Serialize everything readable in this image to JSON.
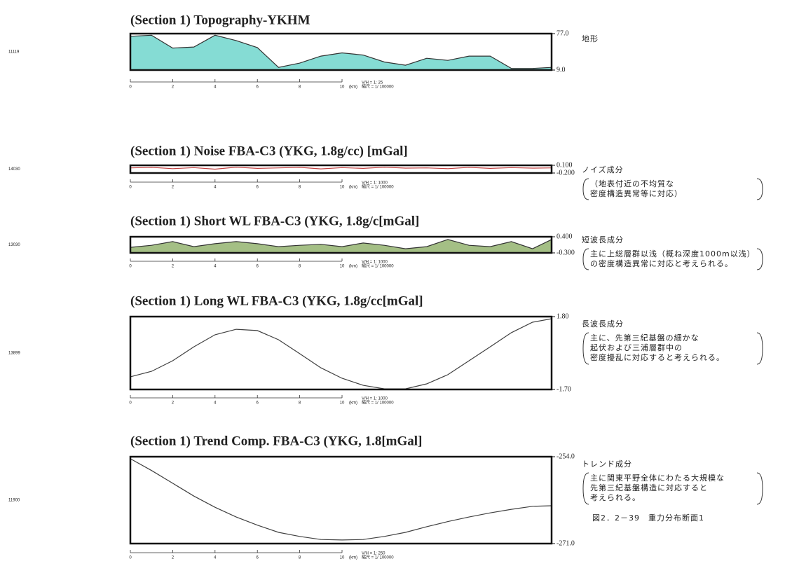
{
  "caption": "図2．2－39　重力分布断面1",
  "chart_data": [
    {
      "type": "line",
      "title": "(Section 1) Topography-YKHM",
      "side_label": "11119",
      "xlabel": "(km)",
      "scale_note": [
        "V/H = 1:   25",
        "縮尺 = 1/ 100000"
      ],
      "annotations": [
        "地形"
      ],
      "x": [
        0,
        1,
        2,
        3,
        4,
        5,
        6,
        7,
        8,
        9,
        10,
        11,
        12,
        13,
        14,
        15,
        16,
        17,
        18,
        19,
        19.9
      ],
      "values": [
        72,
        74,
        50,
        52,
        74,
        64,
        51,
        14,
        22,
        35,
        41,
        37,
        24,
        18,
        31,
        27,
        35,
        35,
        12,
        12,
        14
      ],
      "color": "#20c0b0",
      "fill": true,
      "xlim": [
        0,
        19.9
      ],
      "xticks": [
        0,
        2,
        4,
        6,
        8,
        10
      ],
      "ylim": [
        9,
        77
      ],
      "yticks": [
        {
          "value": 77,
          "label": "77.0"
        },
        {
          "value": 9,
          "label": "9.0"
        }
      ]
    },
    {
      "type": "line",
      "title": "(Section 1) Noise FBA-C3 (YKG, 1.8g/cc) [mGal]",
      "side_label": "14030",
      "xlabel": "(km)",
      "scale_note": [
        "V/H = 1:    1000",
        "縮尺 = 1/ 100000"
      ],
      "annotations": [
        "ノイズ成分",
        "（地表付近の不均質な",
        "密度構造異常等に対応）"
      ],
      "x": [
        0,
        1,
        2,
        3,
        4,
        5,
        6,
        7,
        8,
        9,
        10,
        11,
        12,
        13,
        14,
        15,
        16,
        17,
        18,
        19,
        19.9
      ],
      "values": [
        0,
        0.02,
        -0.03,
        0.01,
        -0.05,
        0.03,
        -0.02,
        0,
        0.02,
        -0.04,
        0.01,
        -0.02,
        0.03,
        -0.01,
        0,
        -0.03,
        0.02,
        -0.02,
        0.01,
        -0.01,
        0
      ],
      "color": "#c04040",
      "fill": false,
      "xlim": [
        0,
        19.9
      ],
      "xticks": [
        0,
        2,
        4,
        6,
        8,
        10
      ],
      "ylim": [
        -0.2,
        0.1
      ],
      "yticks": [
        {
          "value": 0.1,
          "label": "0.100"
        },
        {
          "value": -0.2,
          "label": "-0.200"
        }
      ]
    },
    {
      "type": "line",
      "title": "(Section 1) Short WL FBA-C3 (YKG, 1.8g/c[mGal]",
      "side_label": "13030",
      "xlabel": "(km)",
      "scale_note": [
        "V/H = 1:    1000",
        "縮尺 = 1/ 100000"
      ],
      "annotations": [
        "短波長成分",
        "主に上総層群以浅（概ね深度1000m以浅）",
        "の密度構造異常に対応と考えられる。"
      ],
      "x": [
        0,
        1,
        2,
        3,
        4,
        5,
        6,
        7,
        8,
        9,
        10,
        11,
        12,
        13,
        14,
        15,
        16,
        17,
        18,
        19,
        19.9
      ],
      "values": [
        -0.06,
        0.03,
        0.19,
        -0.03,
        0.1,
        0.19,
        0.1,
        -0.03,
        0.03,
        0.07,
        -0.03,
        0.13,
        0.03,
        -0.12,
        -0.03,
        0.28,
        0.03,
        -0.03,
        0.19,
        -0.12,
        0.28
      ],
      "color": "#5a8a20",
      "fill": true,
      "xlim": [
        0,
        19.9
      ],
      "xticks": [
        0,
        2,
        4,
        6,
        8,
        10
      ],
      "ylim": [
        -0.3,
        0.4
      ],
      "yticks": [
        {
          "value": 0.4,
          "label": "0.400"
        },
        {
          "value": -0.3,
          "label": "-0.300"
        }
      ]
    },
    {
      "type": "line",
      "title": "(Section 1) Long WL FBA-C3 (YKG, 1.8g/cc[mGal]",
      "side_label": "13899",
      "xlabel": "(km)",
      "scale_note": [
        "V/H = 1:    1000",
        "縮尺 = 1/ 100000"
      ],
      "annotations": [
        "長波長成分",
        "主に、先第三紀基盤の細かな",
        "起伏および三浦層群中の",
        "密度擾乱に対応すると考えられる。"
      ],
      "x": [
        0,
        1,
        2,
        3,
        4,
        5,
        6,
        7,
        8,
        9,
        10,
        11,
        12,
        13,
        14,
        15,
        16,
        17,
        18,
        19,
        19.9
      ],
      "values": [
        -1.09,
        -0.83,
        -0.32,
        0.35,
        0.93,
        1.19,
        1.13,
        0.69,
        0.02,
        -0.66,
        -1.16,
        -1.5,
        -1.67,
        -1.67,
        -1.43,
        -0.99,
        -0.32,
        0.35,
        1.03,
        1.53,
        1.7
      ],
      "color": "#404040",
      "fill": false,
      "xlim": [
        0,
        19.9
      ],
      "xticks": [
        0,
        2,
        4,
        6,
        8,
        10
      ],
      "ylim": [
        -1.7,
        1.8
      ],
      "yticks": [
        {
          "value": 1.8,
          "label": "1.80"
        },
        {
          "value": -1.7,
          "label": "-1.70"
        }
      ]
    },
    {
      "type": "line",
      "title": "(Section 1) Trend Comp. FBA-C3 (YKG, 1.8[mGal]",
      "side_label": "11900",
      "xlabel": "(km)",
      "scale_note": [
        "V/H = 1:    250",
        "縮尺 = 1/ 100000"
      ],
      "annotations": [
        "トレンド成分",
        "主に関東平野全体にわたる大規模な",
        "先第三紀基盤構造に対応すると",
        "考えられる。"
      ],
      "x": [
        0,
        1,
        2,
        3,
        4,
        5,
        6,
        7,
        8,
        9,
        10,
        11,
        12,
        13,
        14,
        15,
        16,
        17,
        18,
        19,
        19.9
      ],
      "values": [
        -254.4,
        -256.7,
        -259.2,
        -261.7,
        -263.9,
        -265.8,
        -267.4,
        -268.8,
        -269.6,
        -270.2,
        -270.3,
        -270.2,
        -269.6,
        -268.8,
        -267.7,
        -266.7,
        -265.8,
        -265,
        -264.3,
        -263.7,
        -263.6
      ],
      "color": "#404040",
      "fill": false,
      "xlim": [
        0,
        19.9
      ],
      "xticks": [
        0,
        2,
        4,
        6,
        8,
        10
      ],
      "ylim": [
        -271,
        -254
      ],
      "yticks": [
        {
          "value": -254,
          "label": "-254.0"
        },
        {
          "value": -271,
          "label": "-271.0"
        }
      ]
    }
  ]
}
